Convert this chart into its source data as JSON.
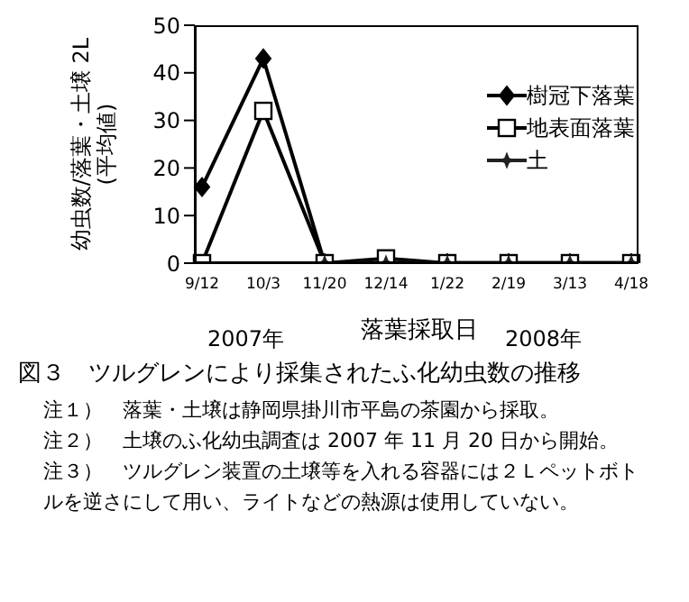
{
  "chart_data": {
    "type": "line",
    "title": "図３　ツルグレンにより採集されたふ化幼虫数の推移",
    "xlabel": "落葉採取日",
    "ylabel": "幼虫数/落葉・土壌 2L (平均値)",
    "categories": [
      "9/12",
      "10/3",
      "11/20",
      "12/14",
      "1/22",
      "2/19",
      "3/13",
      "4/18"
    ],
    "series": [
      {
        "name": "樹冠下落葉",
        "color": "#000000",
        "marker": "diamond",
        "values": [
          16,
          43,
          0,
          0,
          0,
          0,
          0,
          0
        ]
      },
      {
        "name": "地表面落葉",
        "color": "#000000",
        "marker": "square",
        "values": [
          0,
          32,
          0,
          1,
          0,
          0,
          0,
          0
        ]
      },
      {
        "name": "土",
        "color": "#222222",
        "marker": "star",
        "values": [
          null,
          null,
          0,
          0,
          0,
          0,
          0,
          0
        ]
      }
    ],
    "ylim": [
      0,
      50
    ],
    "yticks": [
      0,
      10,
      20,
      30,
      40,
      50
    ],
    "grid": false,
    "legend": "top right",
    "annotations": [
      "2007年",
      "2008年",
      "注１）　落葉・土壌は静岡県掛川市平島の茶園から採取。",
      "注２）　土壌のふ化幼虫調査は 2007 年 11 月 20 日から開始。",
      "注３）　ツルグレン装置の土壌等を入れる容器には２Ｌペットボトルを逆さにして用い、ライトなどの熱源は使用していない。"
    ]
  }
}
